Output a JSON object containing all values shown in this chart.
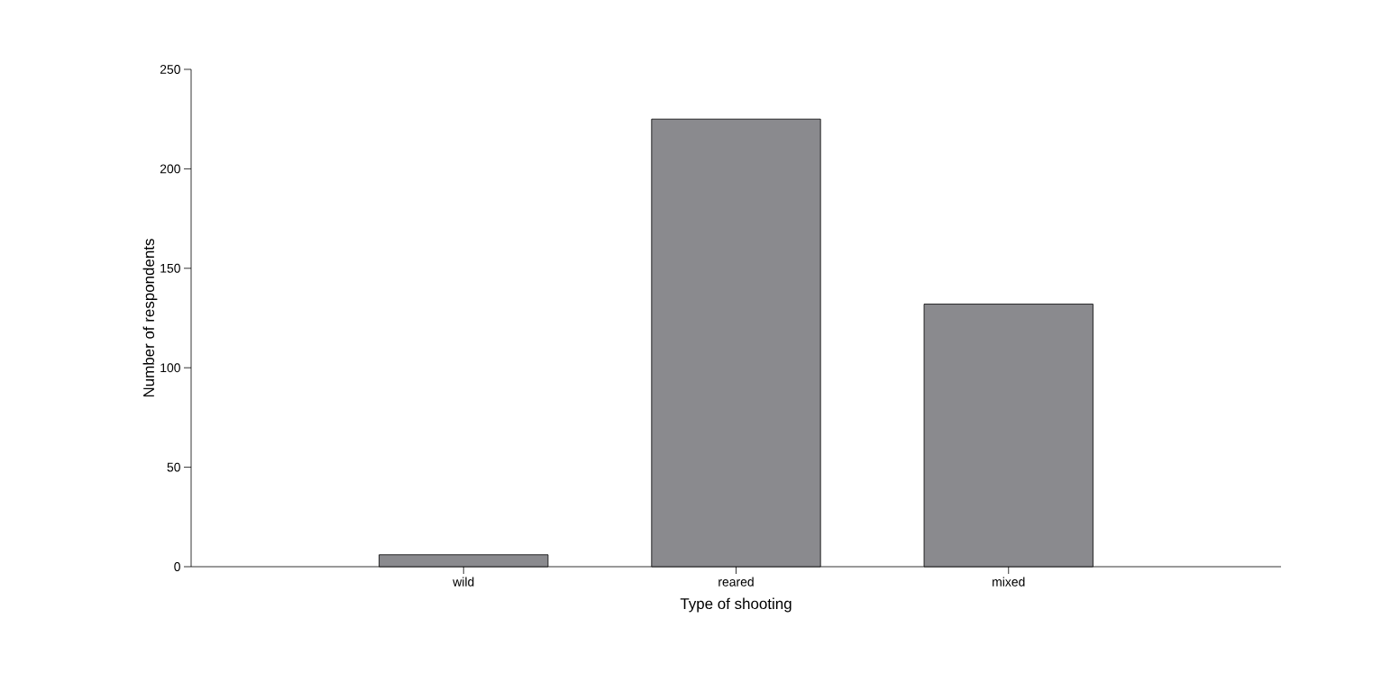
{
  "chart_data": {
    "type": "bar",
    "xlabel": "Type of shooting",
    "ylabel": "Number of respondents",
    "categories": [
      "wild",
      "reared",
      "mixed"
    ],
    "values": [
      6,
      225,
      132
    ],
    "color": "#8a8a8e",
    "ylim": [
      0,
      250
    ],
    "yticks": [
      0,
      50,
      100,
      150,
      200,
      250
    ],
    "grid": false
  }
}
